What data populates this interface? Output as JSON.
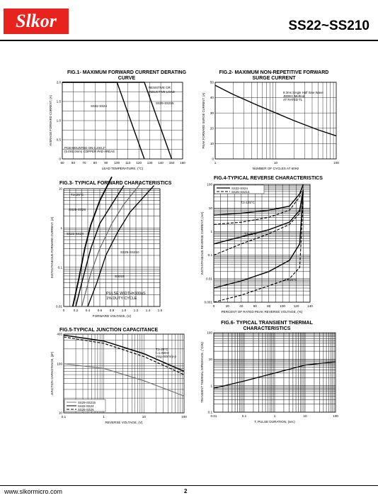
{
  "header": {
    "logo": "Slkor",
    "part": "SS22~SS210"
  },
  "footer": {
    "website": "www.slkormicro.com",
    "page": "2"
  },
  "fig1": {
    "title": "FIG.1- MAXIMUM FORWARD CURRENT  DERATING CURVE",
    "ylabel": "AVERAGE FORWARD CURRENT, (A)",
    "xlabel": "LEAD TEMPERATURE, (°C)",
    "note1": "RESISTIVE OR",
    "note2": "INDUCTIVE LOAD",
    "lab_a": "SS22-SS24",
    "lab_b": "SS25-SS215",
    "pcb1": "PCB MOUNTED ON 0.2X0.2\"",
    "pcb2": "(5.0X5.0mm) COPPER PAD AREAS",
    "chart_data": {
      "type": "line",
      "xlim": [
        50,
        160
      ],
      "ylim": [
        0,
        2.0
      ],
      "xticks": [
        "50",
        "60",
        "70",
        "80",
        "90",
        "100",
        "110",
        "120",
        "130",
        "140",
        "150",
        "160"
      ],
      "yticks": [
        "0",
        "0.5",
        "1.0",
        "1.5",
        "2.0"
      ],
      "series": [
        {
          "name": "SS22-SS24",
          "x": [
            50,
            100,
            125
          ],
          "y": [
            2.0,
            2.0,
            0
          ]
        },
        {
          "name": "SS25-SS215",
          "x": [
            50,
            125,
            150
          ],
          "y": [
            2.0,
            2.0,
            0
          ]
        }
      ]
    }
  },
  "fig2": {
    "title": "FIG.2- MAXIMUM NON-REPETITIVE FORWARD SURGE CURRENT",
    "ylabel": "PEAK FORWARD SURGE CURRENT, (A)",
    "xlabel": "NUMBER OF CYCLES AT 60Hz",
    "note1": "8.3ms Single Half Sine Wave",
    "note2": "JEDEC Method",
    "note3": "AT RATED TL",
    "chart_data": {
      "type": "line",
      "xlim": [
        1,
        100
      ],
      "xscale": "log",
      "ylim": [
        0,
        50
      ],
      "xticks": [
        "1",
        "10",
        "100"
      ],
      "yticks": [
        "0",
        "10",
        "20",
        "30",
        "40",
        "50"
      ],
      "series": [
        {
          "x": [
            1,
            2,
            5,
            10,
            20,
            50,
            100
          ],
          "y": [
            48,
            42,
            35,
            30,
            25,
            19,
            15
          ]
        }
      ]
    }
  },
  "fig3": {
    "title": "FIG.3- TYPICAL FORWARD CHARACTERISTICS",
    "ylabel": "INSTANTANEOUS FORWARD CURRENT, (A)",
    "xlabel": "FORWARD VOLTAGE, (V)",
    "tj": "TJ=25°C",
    "lab_a": "SS25-SS26",
    "lab_b": "SS22-SS24",
    "lab_c": "SS29-SS210",
    "lab_d": "SS215",
    "pulse1": "PULSE WIDTH=300uS",
    "pulse2": "1% DUTY  CYCLE",
    "chart_data": {
      "type": "line",
      "xlim": [
        0,
        1.6
      ],
      "ylim": [
        0.01,
        10
      ],
      "yscale": "log",
      "xticks": [
        "0",
        "0.2",
        "0.4",
        "0.6",
        "0.8",
        "1.0",
        "1.2",
        "1.4",
        "1.6"
      ],
      "yticks": [
        "0.01",
        "0.1",
        "1",
        "10"
      ],
      "series": [
        {
          "name": "SS22-SS24",
          "x": [
            0.15,
            0.25,
            0.35,
            0.45,
            0.6,
            0.8
          ],
          "y": [
            0.01,
            0.05,
            0.3,
            1.2,
            5,
            20
          ]
        },
        {
          "name": "SS25-SS26",
          "x": [
            0.2,
            0.3,
            0.45,
            0.6,
            0.8,
            1.0
          ],
          "y": [
            0.01,
            0.04,
            0.3,
            1.3,
            4,
            12
          ]
        },
        {
          "name": "SS29-SS210",
          "x": [
            0.3,
            0.45,
            0.6,
            0.8,
            1.0,
            1.3
          ],
          "y": [
            0.01,
            0.07,
            0.3,
            1.3,
            4,
            15
          ]
        },
        {
          "name": "SS215",
          "x": [
            0.4,
            0.55,
            0.7,
            0.9,
            1.1,
            1.5
          ],
          "y": [
            0.01,
            0.04,
            0.2,
            0.8,
            2.5,
            12
          ]
        }
      ]
    }
  },
  "fig4": {
    "title": "FIG.4-TYPICAL REVERSE CHARACTERISTICS",
    "ylabel": "INSTANTANEOUS REVERSE CURRENT, (mA)",
    "xlabel": "PERCENT OF RATED PEAK REVERSE VOLTAGE, (%)",
    "leg_a": "SS22-SS24",
    "leg_b": "SS25-SS215",
    "t125": "TJ=125°C",
    "t75": "TJ=75°C",
    "t25": "TJ=25°C",
    "chart_data": {
      "type": "line",
      "xlim": [
        0,
        140
      ],
      "ylim": [
        0.001,
        100
      ],
      "yscale": "log",
      "xticks": [
        "0",
        "20",
        "40",
        "60",
        "80",
        "100",
        "120",
        "140"
      ],
      "yticks": [
        "0.001",
        "0.01",
        "0.1",
        "1",
        "10",
        "100"
      ],
      "series": [
        {
          "name": "SS22-SS24",
          "x": [
            0,
            40,
            80,
            110,
            125,
            130
          ],
          "y": [
            5,
            6,
            8,
            12,
            40,
            100
          ]
        },
        {
          "name": "SS22-SS24",
          "x": [
            0,
            40,
            80,
            110,
            125,
            130
          ],
          "y": [
            0.3,
            0.6,
            1.2,
            2.5,
            8,
            60
          ]
        },
        {
          "name": "SS22-SS24",
          "x": [
            0,
            40,
            80,
            110,
            125,
            130
          ],
          "y": [
            0.004,
            0.008,
            0.02,
            0.06,
            0.3,
            50
          ]
        },
        {
          "name": "SS25-SS215",
          "x": [
            0,
            40,
            80,
            110,
            125,
            130
          ],
          "y": [
            2,
            2.5,
            4,
            8,
            30,
            100
          ]
        },
        {
          "name": "SS25-SS215",
          "x": [
            0,
            40,
            80,
            110,
            125,
            130
          ],
          "y": [
            0.1,
            0.3,
            0.8,
            2,
            6,
            50
          ]
        },
        {
          "name": "SS25-SS215",
          "x": [
            0,
            40,
            80,
            110,
            125,
            130
          ],
          "y": [
            0.001,
            0.002,
            0.005,
            0.01,
            0.03,
            20
          ]
        }
      ]
    }
  },
  "fig5": {
    "title": "FIG.5-TYPICAL JUNCTION CAPACITANCE",
    "ylabel": "JUNCTION CAPACITANCE, (pF)",
    "xlabel": "REVERSE VOLTAGE, (V)",
    "note1": "TJ=25°C",
    "note2": "f=1.0MHz",
    "note3": "Vsig=50mVp-p",
    "leg": [
      "SS29-SS215",
      "SS22-SS24",
      "SS25-SS26"
    ],
    "chart_data": {
      "type": "line",
      "xlim": [
        0.1,
        100
      ],
      "xscale": "log",
      "ylim": [
        10,
        400
      ],
      "yscale": "log",
      "xticks": [
        "0.1",
        "1",
        "10",
        "100"
      ],
      "yticks": [
        "10",
        "100",
        "400"
      ],
      "series": [
        {
          "name": "SS22-SS24",
          "x": [
            0.1,
            1,
            10,
            100
          ],
          "y": [
            380,
            290,
            160,
            70
          ]
        },
        {
          "name": "SS25-SS26",
          "x": [
            0.1,
            1,
            10,
            100
          ],
          "y": [
            350,
            260,
            140,
            60
          ]
        },
        {
          "name": "SS29-SS215",
          "x": [
            0.1,
            1,
            10,
            100
          ],
          "y": [
            100,
            80,
            45,
            22
          ]
        }
      ]
    }
  },
  "fig6": {
    "title": "FIG.6- TYPICAL TRANSIENT THERMAL CHARACTERISTICS",
    "ylabel": "TRANSIENT THERMAL IMPEDANCE, (°C/W)",
    "xlabel": "T, PULSE DURATION, (sec)",
    "chart_data": {
      "type": "line",
      "xlim": [
        0.01,
        100
      ],
      "xscale": "log",
      "ylim": [
        0.1,
        100
      ],
      "yscale": "log",
      "xticks": [
        "0.01",
        "0.1",
        "1",
        "10",
        "100"
      ],
      "yticks": [
        "0.1",
        "1",
        "10",
        "100"
      ],
      "series": [
        {
          "x": [
            0.01,
            0.1,
            1,
            10,
            100
          ],
          "y": [
            0.8,
            1.5,
            3,
            6,
            8
          ]
        }
      ]
    }
  }
}
